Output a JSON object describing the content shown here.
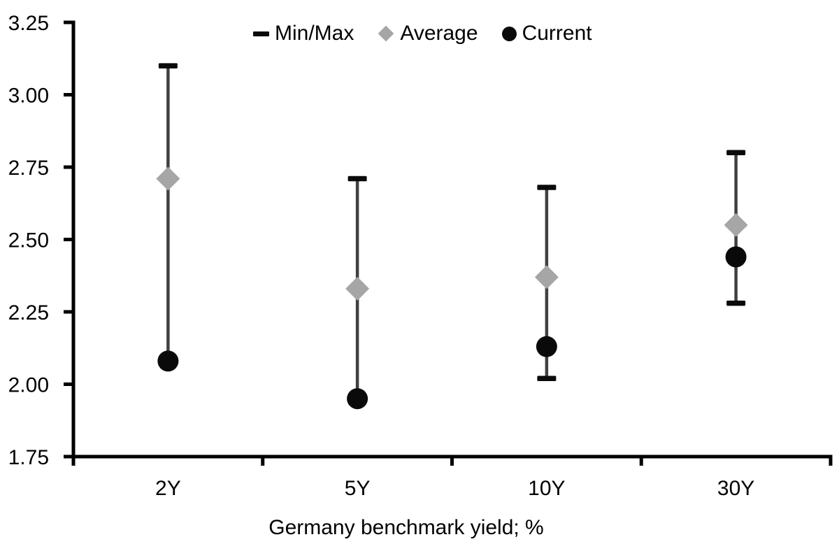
{
  "chart_data": {
    "type": "scatter",
    "subtype": "min-max-range-with-markers",
    "title": "",
    "categories": [
      "2Y",
      "5Y",
      "10Y",
      "30Y"
    ],
    "series": [
      {
        "name": "Min/Max",
        "marker": "dash",
        "color": "#0a0a0a",
        "min": [
          2.08,
          1.95,
          2.02,
          2.28
        ],
        "max": [
          3.1,
          2.71,
          2.68,
          2.8
        ]
      },
      {
        "name": "Average",
        "marker": "diamond",
        "color": "#a6a6a6",
        "values": [
          2.71,
          2.33,
          2.37,
          2.55
        ]
      },
      {
        "name": "Current",
        "marker": "circle",
        "color": "#0a0a0a",
        "values": [
          2.08,
          1.95,
          2.13,
          2.44
        ]
      }
    ],
    "xlabel": "Germany benchmark yield; %",
    "ylabel": "",
    "ylim": [
      1.75,
      3.25
    ],
    "yticks": [
      1.75,
      2.0,
      2.25,
      2.5,
      2.75,
      3.0,
      3.25
    ],
    "ytick_labels": [
      "1.75",
      "2.00",
      "2.25",
      "2.50",
      "2.75",
      "3.00",
      "3.25"
    ],
    "legend_position": "top-center",
    "grid": false
  },
  "legend": {
    "items": [
      {
        "label": "Min/Max",
        "marker": "dash"
      },
      {
        "label": "Average",
        "marker": "diamond"
      },
      {
        "label": "Current",
        "marker": "circle"
      }
    ]
  },
  "colors": {
    "background": "#ffffff",
    "axis": "#000000",
    "text": "#000000",
    "whisker_line": "#404040",
    "minmax_cap": "#0a0a0a",
    "average_marker": "#a6a6a6",
    "current_marker": "#0a0a0a"
  }
}
